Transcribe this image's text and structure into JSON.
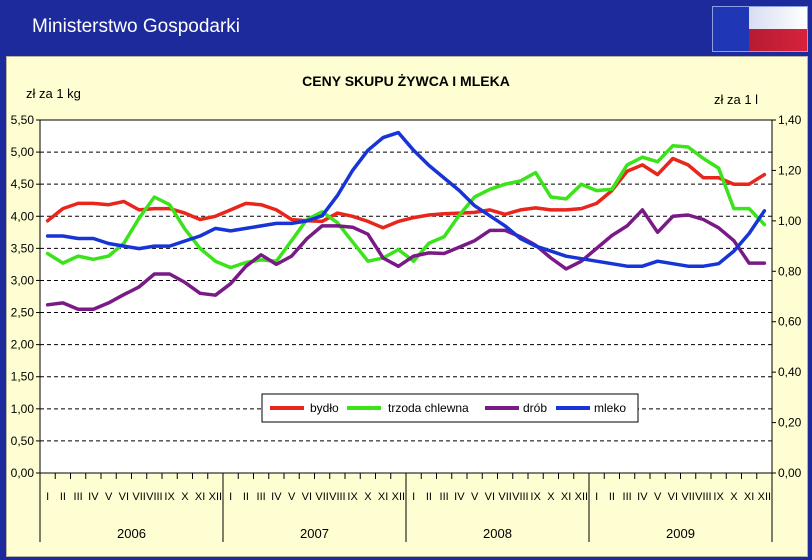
{
  "header": {
    "title": "Ministerstwo Gospodarki"
  },
  "colors": {
    "header_bg": "#1c2a9c",
    "panel_bg": "#fefed2",
    "bydlo": "#e8261b",
    "trzoda": "#3be31a",
    "drob": "#7a1a86",
    "mleko": "#1734d6"
  },
  "chart_data": {
    "type": "line",
    "title": "CENY SKUPU ŻYWCA I MLEKA",
    "ylabel_left": "zł za 1 kg",
    "ylabel_right": "zł za 1 l",
    "ylim_left": [
      0,
      5.5
    ],
    "ylim_right": [
      0,
      1.4
    ],
    "yticks_left": [
      "0,00",
      "0,50",
      "1,00",
      "1,50",
      "2,00",
      "2,50",
      "3,00",
      "3,50",
      "4,00",
      "4,50",
      "5,00",
      "5,50"
    ],
    "yticks_right": [
      "0,00",
      "0,20",
      "0,40",
      "0,60",
      "0,80",
      "1,00",
      "1,20",
      "1,40"
    ],
    "months": [
      "I",
      "II",
      "III",
      "IV",
      "V",
      "VI",
      "VII",
      "VIII",
      "IX",
      "X",
      "XI",
      "XII"
    ],
    "years": [
      "2006",
      "2007",
      "2008",
      "2009"
    ],
    "grid": "dashed-horizontal",
    "legend_position": "bottom-center",
    "series": [
      {
        "name": "bydło",
        "axis": "left",
        "color": "#e8261b",
        "values": [
          3.93,
          4.12,
          4.2,
          4.2,
          4.18,
          4.23,
          4.1,
          4.12,
          4.12,
          4.05,
          3.95,
          4.0,
          4.1,
          4.2,
          4.18,
          4.1,
          3.95,
          3.93,
          3.92,
          4.05,
          4.0,
          3.92,
          3.82,
          3.92,
          3.98,
          4.02,
          4.04,
          4.05,
          4.06,
          4.1,
          4.03,
          4.1,
          4.13,
          4.1,
          4.1,
          4.12,
          4.2,
          4.4,
          4.7,
          4.8,
          4.65,
          4.9,
          4.8,
          4.6,
          4.6,
          4.5,
          4.5,
          4.65
        ]
      },
      {
        "name": "trzoda chlewna",
        "axis": "left",
        "color": "#3be31a",
        "values": [
          3.42,
          3.27,
          3.38,
          3.33,
          3.38,
          3.58,
          3.97,
          4.3,
          4.18,
          3.8,
          3.5,
          3.3,
          3.2,
          3.28,
          3.32,
          3.3,
          3.62,
          3.95,
          4.07,
          3.9,
          3.6,
          3.3,
          3.35,
          3.48,
          3.3,
          3.58,
          3.68,
          4.02,
          4.3,
          4.42,
          4.5,
          4.55,
          4.68,
          4.3,
          4.27,
          4.5,
          4.4,
          4.42,
          4.8,
          4.92,
          4.85,
          5.1,
          5.08,
          4.9,
          4.75,
          4.12,
          4.12,
          3.87
        ]
      },
      {
        "name": "drób",
        "axis": "left",
        "color": "#7a1a86",
        "values": [
          2.62,
          2.65,
          2.55,
          2.55,
          2.65,
          2.78,
          2.9,
          3.1,
          3.1,
          2.97,
          2.8,
          2.77,
          2.95,
          3.22,
          3.4,
          3.25,
          3.38,
          3.65,
          3.85,
          3.85,
          3.83,
          3.72,
          3.35,
          3.22,
          3.38,
          3.43,
          3.42,
          3.52,
          3.62,
          3.78,
          3.78,
          3.68,
          3.55,
          3.35,
          3.18,
          3.3,
          3.5,
          3.7,
          3.85,
          4.1,
          3.75,
          4.0,
          4.02,
          3.95,
          3.82,
          3.62,
          3.27,
          3.27
        ]
      },
      {
        "name": "mleko",
        "axis": "right",
        "color": "#1734d6",
        "values": [
          0.94,
          0.94,
          0.93,
          0.93,
          0.91,
          0.9,
          0.89,
          0.9,
          0.9,
          0.92,
          0.94,
          0.97,
          0.96,
          0.97,
          0.98,
          0.99,
          0.99,
          1.0,
          1.02,
          1.1,
          1.2,
          1.28,
          1.33,
          1.35,
          1.28,
          1.22,
          1.17,
          1.12,
          1.06,
          1.02,
          0.98,
          0.93,
          0.9,
          0.88,
          0.86,
          0.85,
          0.84,
          0.83,
          0.82,
          0.82,
          0.84,
          0.83,
          0.82,
          0.82,
          0.83,
          0.88,
          0.95,
          1.04
        ]
      }
    ]
  }
}
